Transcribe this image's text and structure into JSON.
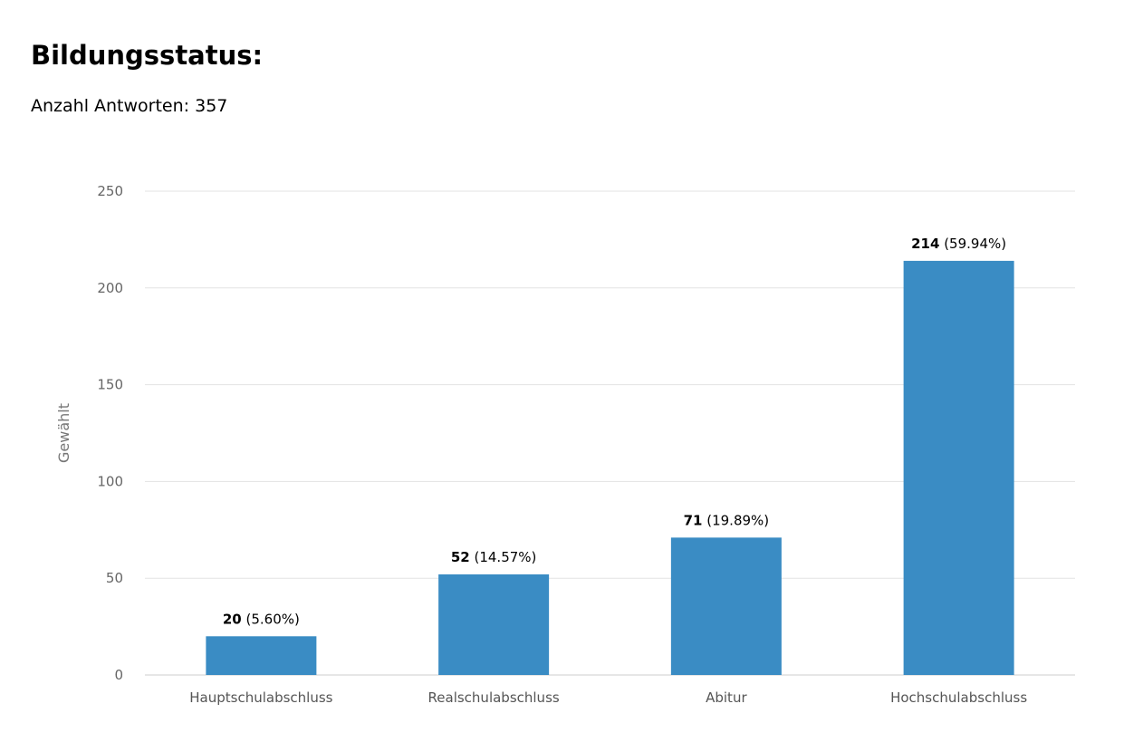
{
  "header": {
    "title": "Bildungsstatus:",
    "subtitle": "Anzahl Antworten: 357"
  },
  "chart_data": {
    "type": "bar",
    "categories": [
      "Hauptschulabschluss",
      "Realschulabschluss",
      "Abitur",
      "Hochschulabschluss"
    ],
    "values": [
      20,
      52,
      71,
      214
    ],
    "percent_labels": [
      "(5.60%)",
      "(14.57%)",
      "(19.89%)",
      "(59.94%)"
    ],
    "ylabel": "Gewählt",
    "xlabel": "",
    "ylim": [
      0,
      250
    ],
    "yticks": [
      0,
      50,
      100,
      150,
      200,
      250
    ],
    "grid": true,
    "bar_color": "#3a8cc4",
    "grid_color": "#e3e3e3"
  }
}
